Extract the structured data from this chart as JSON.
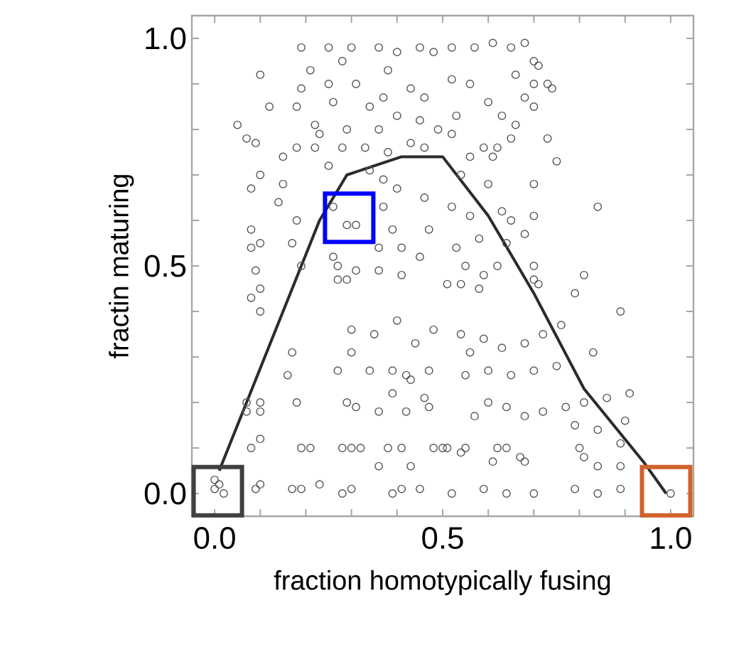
{
  "chart_data": {
    "type": "scatter",
    "xlabel": "fraction homotypically fusing",
    "ylabel": "fractin maturing",
    "xlim": [
      -0.05,
      1.05
    ],
    "ylim": [
      -0.05,
      1.05
    ],
    "xticks": [
      {
        "value": 0,
        "label": "0.0"
      },
      {
        "value": 0.1,
        "label": null
      },
      {
        "value": 0.2,
        "label": null
      },
      {
        "value": 0.3,
        "label": null
      },
      {
        "value": 0.4,
        "label": null
      },
      {
        "value": 0.5,
        "label": "0.5"
      },
      {
        "value": 0.6,
        "label": null
      },
      {
        "value": 0.7,
        "label": null
      },
      {
        "value": 0.8,
        "label": null
      },
      {
        "value": 0.9,
        "label": null
      },
      {
        "value": 1,
        "label": "1.0"
      }
    ],
    "yticks": [
      {
        "value": 0,
        "label": "0.0"
      },
      {
        "value": 0.1,
        "label": null
      },
      {
        "value": 0.2,
        "label": null
      },
      {
        "value": 0.3,
        "label": null
      },
      {
        "value": 0.4,
        "label": null
      },
      {
        "value": 0.5,
        "label": "0.5"
      },
      {
        "value": 0.6,
        "label": null
      },
      {
        "value": 0.7,
        "label": null
      },
      {
        "value": 0.8,
        "label": null
      },
      {
        "value": 0.9,
        "label": null
      },
      {
        "value": 1,
        "label": "1.0"
      }
    ],
    "marker": "circle",
    "grid": false,
    "series": [
      {
        "color": "#555555",
        "x": [
          0.0,
          0.01,
          0.0,
          0.02,
          0.09,
          0.1,
          0.17,
          0.19,
          0.23,
          0.28,
          0.3,
          0.39,
          0.41,
          0.45,
          0.52,
          0.59,
          0.64,
          0.7,
          0.79,
          0.84,
          0.89,
          1.0,
          0.08,
          0.1,
          0.19,
          0.21,
          0.28,
          0.3,
          0.32,
          0.36,
          0.38,
          0.41,
          0.43,
          0.48,
          0.5,
          0.51,
          0.55,
          0.62,
          0.64,
          0.67,
          0.61,
          0.68,
          0.07,
          0.07,
          0.1,
          0.1,
          0.18,
          0.29,
          0.31,
          0.36,
          0.39,
          0.42,
          0.46,
          0.47,
          0.16,
          0.27,
          0.34,
          0.39,
          0.42,
          0.43,
          0.47,
          0.17,
          0.3,
          0.35,
          0.3,
          0.44,
          0.4,
          0.48,
          0.08,
          0.1,
          0.1,
          0.27,
          0.29,
          0.05,
          0.07,
          0.09,
          0.1,
          0.12,
          0.18,
          0.1,
          0.08,
          0.15,
          0.15,
          0.14,
          0.08,
          0.08,
          0.1,
          0.09,
          0.18,
          0.17,
          0.18,
          0.22,
          0.23,
          0.19,
          0.21,
          0.25,
          0.19,
          0.22,
          0.25,
          0.19,
          0.27,
          0.31,
          0.26,
          0.26,
          0.29,
          0.31,
          0.26,
          0.25,
          0.3,
          0.28,
          0.31,
          0.29,
          0.34,
          0.33,
          0.28,
          0.34,
          0.37,
          0.37,
          0.39,
          0.36,
          0.41,
          0.36,
          0.41,
          0.46,
          0.47,
          0.45,
          0.4,
          0.36,
          0.4,
          0.45,
          0.48,
          0.38,
          0.43,
          0.46,
          0.37,
          0.4,
          0.45,
          0.49,
          0.36,
          0.43,
          0.46,
          0.38,
          0.52,
          0.57,
          0.61,
          0.65,
          0.68,
          0.7,
          0.71,
          0.66,
          0.73,
          0.74,
          0.7,
          0.68,
          0.7,
          0.6,
          0.56,
          0.52,
          0.53,
          0.63,
          0.66,
          0.73,
          0.75,
          0.65,
          0.62,
          0.59,
          0.61,
          0.56,
          0.52,
          0.7,
          0.84,
          0.7,
          0.6,
          0.54,
          0.52,
          0.56,
          0.63,
          0.65,
          0.68,
          0.64,
          0.58,
          0.53,
          0.55,
          0.59,
          0.62,
          0.7,
          0.7,
          0.81,
          0.51,
          0.54,
          0.58,
          0.71,
          0.79,
          0.89,
          0.54,
          0.59,
          0.63,
          0.68,
          0.72,
          0.76,
          0.56,
          0.6,
          0.65,
          0.7,
          0.75,
          0.83,
          0.55,
          0.6,
          0.64,
          0.68,
          0.72,
          0.77,
          0.81,
          0.86,
          0.91,
          0.57,
          0.79,
          0.84,
          0.9,
          0.89,
          0.8,
          0.81,
          0.89,
          0.84,
          0.54
        ],
        "values": [
          0.01,
          0.02,
          0.03,
          0.0,
          0.01,
          0.02,
          0.01,
          0.01,
          0.02,
          0.0,
          0.01,
          0.0,
          0.01,
          0.01,
          0.0,
          0.01,
          0.0,
          0.0,
          0.01,
          0.0,
          0.01,
          0.0,
          0.1,
          0.12,
          0.1,
          0.1,
          0.1,
          0.1,
          0.1,
          0.06,
          0.1,
          0.1,
          0.06,
          0.1,
          0.1,
          0.1,
          0.1,
          0.1,
          0.1,
          0.08,
          0.07,
          0.07,
          0.2,
          0.18,
          0.2,
          0.18,
          0.2,
          0.2,
          0.19,
          0.18,
          0.22,
          0.18,
          0.21,
          0.19,
          0.26,
          0.27,
          0.27,
          0.27,
          0.26,
          0.25,
          0.27,
          0.31,
          0.31,
          0.35,
          0.36,
          0.33,
          0.38,
          0.36,
          0.43,
          0.45,
          0.4,
          0.47,
          0.47,
          0.81,
          0.78,
          0.77,
          0.92,
          0.85,
          0.85,
          0.7,
          0.67,
          0.68,
          0.74,
          0.64,
          0.58,
          0.54,
          0.55,
          0.49,
          0.6,
          0.55,
          0.76,
          0.76,
          0.79,
          0.98,
          0.93,
          0.98,
          0.89,
          0.81,
          0.72,
          0.5,
          0.5,
          0.49,
          0.52,
          0.63,
          0.59,
          0.59,
          0.86,
          0.9,
          0.98,
          0.95,
          0.9,
          0.8,
          0.85,
          0.76,
          0.76,
          0.71,
          0.69,
          0.63,
          0.58,
          0.54,
          0.54,
          0.49,
          0.48,
          0.65,
          0.58,
          0.52,
          0.67,
          0.98,
          0.97,
          0.98,
          0.97,
          0.93,
          0.89,
          0.87,
          0.87,
          0.83,
          0.82,
          0.8,
          0.8,
          0.77,
          0.76,
          0.75,
          0.98,
          0.98,
          0.99,
          0.98,
          0.99,
          0.95,
          0.94,
          0.92,
          0.9,
          0.89,
          0.9,
          0.87,
          0.85,
          0.86,
          0.9,
          0.91,
          0.83,
          0.83,
          0.81,
          0.78,
          0.73,
          0.78,
          0.76,
          0.76,
          0.74,
          0.74,
          0.79,
          0.68,
          0.63,
          0.61,
          0.68,
          0.7,
          0.63,
          0.61,
          0.62,
          0.6,
          0.57,
          0.55,
          0.56,
          0.54,
          0.5,
          0.48,
          0.5,
          0.5,
          0.47,
          0.48,
          0.46,
          0.46,
          0.45,
          0.46,
          0.44,
          0.4,
          0.35,
          0.34,
          0.32,
          0.33,
          0.35,
          0.37,
          0.31,
          0.27,
          0.26,
          0.27,
          0.28,
          0.31,
          0.26,
          0.2,
          0.19,
          0.17,
          0.18,
          0.19,
          0.2,
          0.21,
          0.22,
          0.17,
          0.15,
          0.14,
          0.16,
          0.11,
          0.1,
          0.08,
          0.06,
          0.06,
          0.09
        ]
      },
      {
        "type": "line",
        "color": "#2b2b2b",
        "marker": "none",
        "x": [
          0.01,
          0.23,
          0.29,
          0.41,
          0.5,
          0.6,
          0.7,
          0.81,
          0.94,
          0.99
        ],
        "values": [
          0.05,
          0.6,
          0.7,
          0.74,
          0.74,
          0.61,
          0.44,
          0.23,
          0.07,
          0.0
        ]
      },
      {
        "color": "#404040",
        "marker": "square",
        "x": [
          0.007
        ],
        "values": [
          0.005
        ]
      },
      {
        "color": "#0000ff",
        "marker": "square",
        "x": [
          0.295
        ],
        "values": [
          0.606
        ]
      },
      {
        "color": "#d2622a",
        "marker": "square",
        "x": [
          0.99
        ],
        "values": [
          0.005
        ]
      }
    ]
  }
}
